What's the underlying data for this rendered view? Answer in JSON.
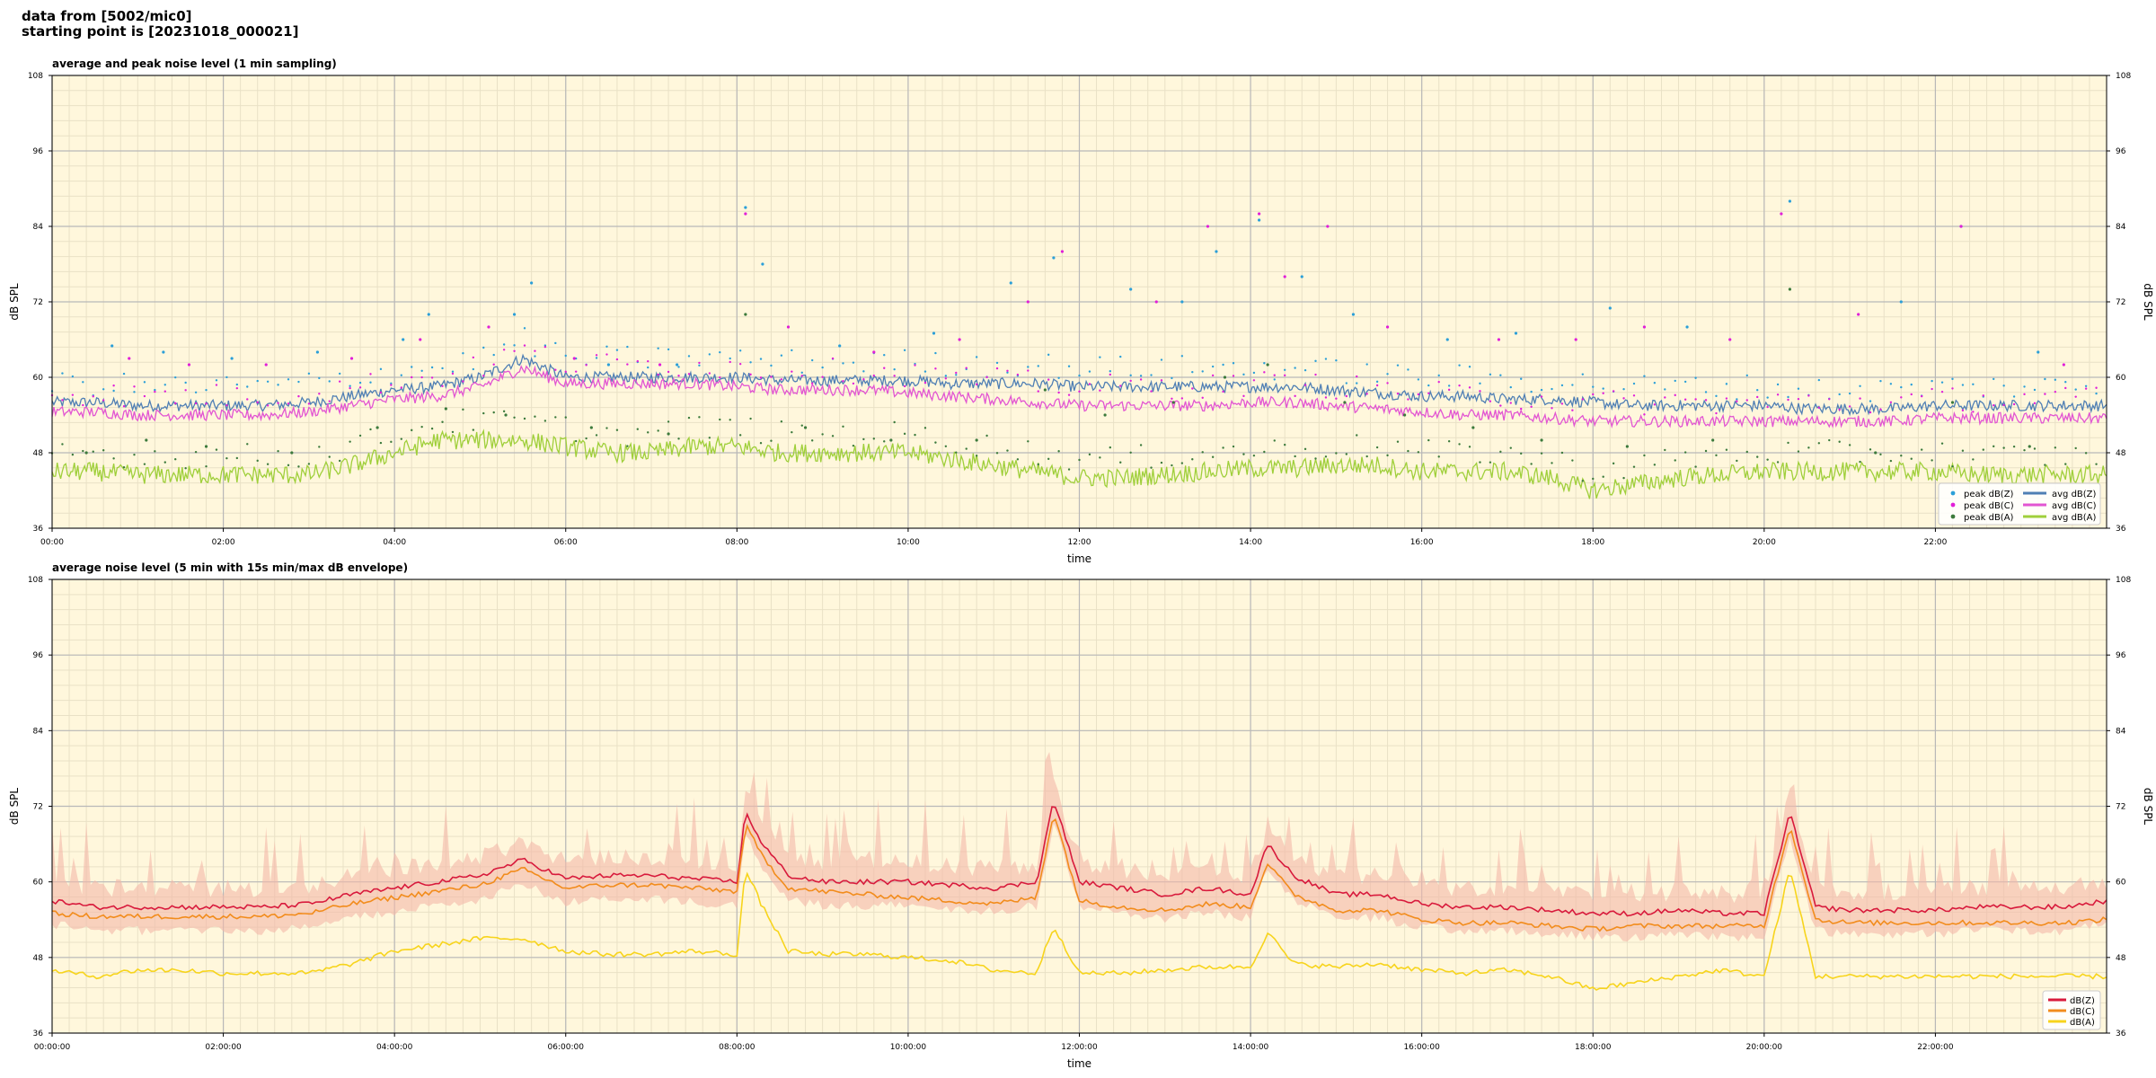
{
  "header": {
    "line1": "data from [5002/mic0]",
    "line2": "starting point is [20231018_000021]"
  },
  "colors": {
    "plot_bg": "#fff7dc",
    "grid_major": "#b8b8b8",
    "grid_minor": "#e9e1c6",
    "avg_z": "#4f7fb4",
    "avg_c": "#e255d2",
    "avg_a": "#9fcf3a",
    "peak_z": "#2b9fd8",
    "peak_c": "#e11fd8",
    "peak_a": "#3c7a3c",
    "bottom_z": "#d81a3c",
    "bottom_c": "#f28c1c",
    "bottom_a": "#f7d41c",
    "envelope": "#f4b8a8"
  },
  "chart_data": [
    {
      "type": "line",
      "title": "average and peak noise level (1 min sampling)",
      "xlabel": "time",
      "ylabel": "dB SPL",
      "xlim": [
        0,
        24
      ],
      "ylim": [
        36,
        108
      ],
      "yticks": [
        "36",
        "48",
        "60",
        "72",
        "84",
        "96",
        "108"
      ],
      "xticks": [
        "00:00",
        "02:00",
        "04:00",
        "06:00",
        "08:00",
        "10:00",
        "12:00",
        "14:00",
        "16:00",
        "18:00",
        "20:00",
        "22:00"
      ],
      "grid": true,
      "legend": "bottom-right",
      "legend_entries": [
        "peak dB(Z)",
        "peak dB(C)",
        "peak dB(A)",
        "avg dB(Z)",
        "avg dB(C)",
        "avg dB(A)"
      ],
      "series": [
        {
          "name": "avg dB(Z)",
          "kind": "line",
          "color_key": "avg_z",
          "x_hours": [
            0,
            0.5,
            1,
            1.5,
            2,
            2.5,
            3,
            3.5,
            4,
            4.5,
            5,
            5.5,
            6,
            6.5,
            7,
            7.5,
            8,
            8.5,
            9,
            9.5,
            10,
            10.5,
            11,
            11.5,
            12,
            12.5,
            13,
            13.5,
            14,
            14.5,
            15,
            15.5,
            16,
            16.5,
            17,
            17.5,
            18,
            18.5,
            19,
            19.5,
            20,
            20.5,
            21,
            21.5,
            22,
            22.5,
            23,
            23.5,
            24
          ],
          "values": [
            56,
            56,
            55.5,
            55.5,
            55.5,
            55.5,
            56,
            57,
            58,
            58.5,
            60,
            63,
            60,
            60,
            60,
            60,
            60,
            59.5,
            59.5,
            59.5,
            59.5,
            59,
            59,
            59,
            58.5,
            58.5,
            58.5,
            58.5,
            58.5,
            58.5,
            58,
            57.5,
            57,
            57,
            56.5,
            56.5,
            56,
            55.5,
            55.5,
            55.5,
            55.5,
            55,
            55,
            55,
            55.5,
            55.5,
            55.5,
            55.5,
            55.5
          ]
        },
        {
          "name": "avg dB(C)",
          "kind": "line",
          "color_key": "avg_c",
          "x_hours": [
            0,
            0.5,
            1,
            1.5,
            2,
            2.5,
            3,
            3.5,
            4,
            4.5,
            5,
            5.5,
            6,
            6.5,
            7,
            7.5,
            8,
            8.5,
            9,
            9.5,
            10,
            10.5,
            11,
            11.5,
            12,
            12.5,
            13,
            13.5,
            14,
            14.5,
            15,
            15.5,
            16,
            16.5,
            17,
            17.5,
            18,
            18.5,
            19,
            19.5,
            20,
            20.5,
            21,
            21.5,
            22,
            22.5,
            23,
            23.5,
            24
          ],
          "values": [
            54.5,
            54.5,
            54,
            54,
            54,
            54,
            54.5,
            55.5,
            56.5,
            57,
            58.5,
            61.5,
            59,
            59,
            59,
            59,
            58.5,
            58,
            58,
            58,
            57.5,
            57,
            56.5,
            56,
            55.5,
            55.5,
            55.5,
            55.5,
            56,
            56,
            55.5,
            55,
            54.5,
            54,
            54,
            53.5,
            53,
            53,
            53,
            53,
            53,
            53,
            53,
            53,
            53.5,
            53.5,
            53.5,
            53.5,
            53.5
          ]
        },
        {
          "name": "avg dB(A)",
          "kind": "line",
          "color_key": "avg_a",
          "x_hours": [
            0,
            0.5,
            1,
            1.5,
            2,
            2.5,
            3,
            3.5,
            4,
            4.5,
            5,
            5.5,
            6,
            6.5,
            7,
            7.5,
            8,
            8.5,
            9,
            9.5,
            10,
            10.5,
            11,
            11.5,
            12,
            12.5,
            13,
            13.5,
            14,
            14.5,
            15,
            15.5,
            16,
            16.5,
            17,
            17.5,
            18,
            18.5,
            19,
            19.5,
            20,
            20.5,
            21,
            21.5,
            22,
            22.5,
            23,
            23.5,
            24
          ],
          "values": [
            45,
            45,
            44.5,
            44.5,
            44.5,
            44.5,
            44.5,
            46,
            48,
            50,
            50,
            50,
            49,
            48,
            48,
            49,
            49,
            48,
            48,
            48,
            48,
            47,
            46,
            45,
            44,
            44,
            44.5,
            45,
            45.5,
            45.5,
            46,
            46,
            45,
            45,
            45,
            44,
            42,
            43,
            44,
            44.5,
            45,
            45,
            45,
            45,
            45,
            44.5,
            44.5,
            44.5,
            44.5
          ]
        },
        {
          "name": "peak dB(Z)",
          "kind": "scatter",
          "color_key": "peak_z",
          "x_hours": [
            0.7,
            1.3,
            2.1,
            3.1,
            4.1,
            4.4,
            5.4,
            5.6,
            6.5,
            7.3,
            8.1,
            8.3,
            9.2,
            10.3,
            11.2,
            11.7,
            12.6,
            13.2,
            13.6,
            14.1,
            14.6,
            15.2,
            16.3,
            17.1,
            18.2,
            19.1,
            20.3,
            21.6,
            22.3,
            23.2
          ],
          "values": [
            65,
            64,
            63,
            64,
            66,
            70,
            70,
            75,
            62,
            62,
            87,
            78,
            65,
            67,
            75,
            79,
            74,
            72,
            80,
            85,
            76,
            70,
            66,
            67,
            71,
            68,
            88,
            72,
            84,
            64
          ]
        },
        {
          "name": "peak dB(C)",
          "kind": "scatter",
          "color_key": "peak_c",
          "x_hours": [
            0.9,
            1.6,
            2.5,
            3.5,
            4.3,
            5.1,
            6.1,
            7.1,
            8.1,
            8.6,
            9.6,
            10.6,
            11.4,
            11.8,
            12.9,
            13.5,
            14.1,
            14.4,
            14.9,
            15.6,
            16.9,
            17.8,
            18.6,
            19.6,
            20.2,
            21.1,
            22.3,
            23.5
          ],
          "values": [
            63,
            62,
            62,
            63,
            66,
            68,
            63,
            62,
            86,
            68,
            64,
            66,
            72,
            80,
            72,
            84,
            86,
            76,
            84,
            68,
            66,
            66,
            68,
            66,
            86,
            70,
            84,
            62
          ]
        },
        {
          "name": "peak dB(A)",
          "kind": "scatter",
          "color_key": "peak_a",
          "x_hours": [
            0.4,
            1.1,
            1.8,
            2.8,
            3.8,
            4.6,
            5.3,
            6.3,
            7.2,
            8.1,
            8.8,
            9.8,
            10.8,
            11.6,
            12.3,
            13.1,
            13.7,
            14.2,
            15.1,
            15.8,
            16.6,
            17.4,
            18.4,
            19.4,
            20.3,
            21.3,
            22.2,
            23.1
          ],
          "values": [
            48,
            50,
            49,
            48,
            52,
            55,
            54,
            52,
            51,
            70,
            52,
            50,
            50,
            58,
            54,
            56,
            60,
            62,
            56,
            54,
            52,
            50,
            49,
            50,
            74,
            48,
            56,
            49
          ]
        }
      ]
    },
    {
      "type": "line",
      "title": "average noise level (5 min with 15s min/max dB envelope)",
      "xlabel": "time",
      "ylabel": "dB SPL",
      "xlim": [
        0,
        24
      ],
      "ylim": [
        36,
        108
      ],
      "yticks": [
        "36",
        "48",
        "60",
        "72",
        "84",
        "96",
        "108"
      ],
      "xticks": [
        "00:00:00",
        "02:00:00",
        "04:00:00",
        "06:00:00",
        "08:00:00",
        "10:00:00",
        "12:00:00",
        "14:00:00",
        "16:00:00",
        "18:00:00",
        "20:00:00",
        "22:00:00"
      ],
      "grid": true,
      "legend": "bottom-right",
      "legend_entries": [
        "dB(Z)",
        "dB(C)",
        "dB(A)"
      ],
      "series": [
        {
          "name": "dB(Z)",
          "kind": "line",
          "color_key": "bottom_z",
          "x_hours": [
            0,
            0.5,
            1,
            1.5,
            2,
            2.5,
            3,
            3.5,
            4,
            4.5,
            5,
            5.5,
            6,
            6.5,
            7,
            7.5,
            8,
            8.1,
            8.3,
            8.6,
            9,
            9.5,
            10,
            10.5,
            11,
            11.5,
            11.7,
            12,
            12.5,
            13,
            13.5,
            14,
            14.2,
            14.5,
            15,
            15.5,
            16,
            16.5,
            17,
            17.5,
            18,
            18.5,
            19,
            19.5,
            20,
            20.3,
            20.6,
            21,
            21.5,
            22,
            22.5,
            23,
            23.5,
            24
          ],
          "values": [
            57,
            56,
            56,
            56,
            56,
            56,
            56.5,
            58,
            59,
            60,
            61,
            63.5,
            60.5,
            61,
            61,
            60.5,
            60,
            71,
            66,
            61,
            60,
            60,
            60,
            59.5,
            59,
            60,
            73,
            60,
            59,
            58,
            59,
            58,
            66,
            61,
            58,
            58,
            56.5,
            56,
            56,
            55.5,
            55,
            55,
            55.5,
            55,
            55,
            71,
            56,
            55.5,
            55.5,
            55.5,
            56,
            56,
            56,
            57
          ]
        },
        {
          "name": "dB(C)",
          "kind": "line",
          "color_key": "bottom_c",
          "x_hours": [
            0,
            0.5,
            1,
            1.5,
            2,
            2.5,
            3,
            3.5,
            4,
            4.5,
            5,
            5.5,
            6,
            6.5,
            7,
            7.5,
            8,
            8.1,
            8.3,
            8.6,
            9,
            9.5,
            10,
            10.5,
            11,
            11.5,
            11.7,
            12,
            12.5,
            13,
            13.5,
            14,
            14.2,
            14.5,
            15,
            15.5,
            16,
            16.5,
            17,
            17.5,
            18,
            18.5,
            19,
            19.5,
            20,
            20.3,
            20.6,
            21,
            21.5,
            22,
            22.5,
            23,
            23.5,
            24
          ],
          "values": [
            55,
            54.5,
            54.5,
            54.5,
            54.5,
            54.5,
            55,
            56.5,
            57.5,
            58.5,
            59.5,
            62,
            59,
            59.5,
            59.5,
            59,
            58.5,
            69,
            64,
            59,
            58.5,
            58,
            57.5,
            57,
            56.5,
            57.5,
            71,
            57,
            56,
            55.5,
            56.5,
            56,
            63,
            58,
            55.5,
            55.5,
            54,
            53.5,
            53.5,
            53,
            52.5,
            53,
            53,
            53,
            53,
            69,
            54,
            53.5,
            53.5,
            53.5,
            53.5,
            53.5,
            53.5,
            54
          ]
        },
        {
          "name": "dB(A)",
          "kind": "line",
          "color_key": "bottom_a",
          "x_hours": [
            0,
            0.5,
            1,
            1.5,
            2,
            2.5,
            3,
            3.5,
            4,
            4.5,
            5,
            5.5,
            6,
            6.5,
            7,
            7.5,
            8,
            8.1,
            8.3,
            8.6,
            9,
            9.5,
            10,
            10.5,
            11,
            11.5,
            11.7,
            12,
            12.5,
            13,
            13.5,
            14,
            14.2,
            14.5,
            15,
            15.5,
            16,
            16.5,
            17,
            17.5,
            18,
            18.5,
            19,
            19.5,
            20,
            20.3,
            20.6,
            21,
            21.5,
            22,
            22.5,
            23,
            23.5,
            24
          ],
          "values": [
            46,
            45,
            46,
            46,
            45.5,
            45.5,
            45.5,
            47,
            49,
            50,
            51,
            51,
            49,
            48.5,
            48.5,
            49,
            48.5,
            62,
            56,
            49,
            48.5,
            48.5,
            48,
            47.5,
            46,
            45.5,
            53,
            45.5,
            45.5,
            46,
            46.5,
            46.5,
            52,
            47,
            46.5,
            47,
            46,
            45.5,
            46,
            45,
            43,
            44,
            45,
            46,
            45,
            62,
            45,
            45,
            45,
            45,
            45,
            45,
            45,
            45
          ]
        }
      ]
    }
  ]
}
